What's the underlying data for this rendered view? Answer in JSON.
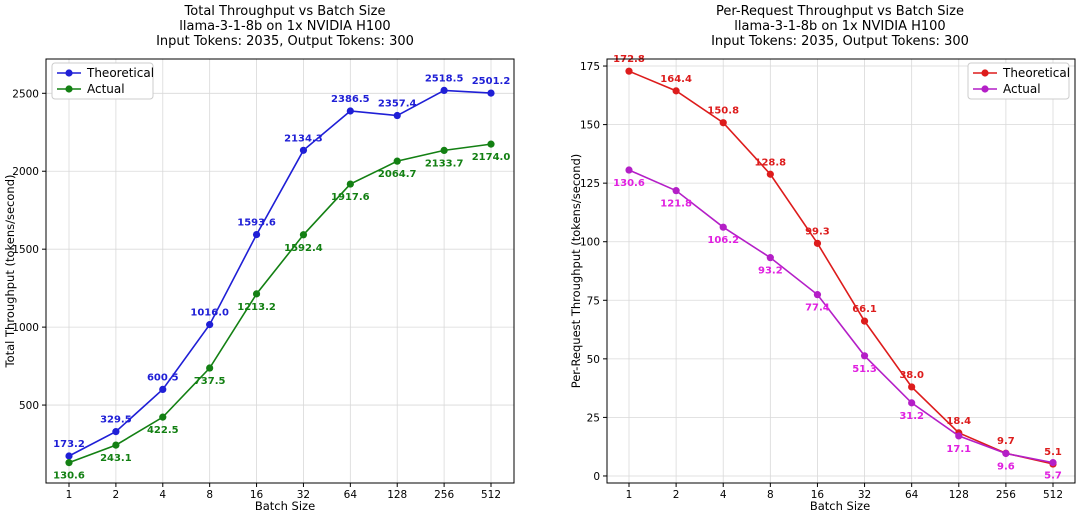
{
  "chart_data": [
    {
      "type": "line",
      "title": "Total Throughput vs Batch Size",
      "subtitle_1": "llama-3-1-8b on 1x NVIDIA H100",
      "subtitle_2": "Input Tokens: 2035, Output Tokens: 300",
      "xlabel": "Batch Size",
      "ylabel": "Total Throughput (tokens/second)",
      "x": [
        "1",
        "2",
        "4",
        "8",
        "16",
        "32",
        "64",
        "128",
        "256",
        "512"
      ],
      "xscale": "categorical",
      "ylim": [
        0,
        2720
      ],
      "yticks": [
        500,
        1000,
        1500,
        2000,
        2500
      ],
      "grid": true,
      "legend_position": "top-left",
      "series": [
        {
          "name": "Theoretical",
          "color": "#1f1fd6",
          "values": [
            173.2,
            329.5,
            600.5,
            1016.0,
            1593.6,
            2134.3,
            2386.5,
            2357.4,
            2518.5,
            2501.2
          ],
          "labels": [
            "173.2",
            "329.5",
            "600.5",
            "1016.0",
            "1593.6",
            "2134.3",
            "2386.5",
            "2357.4",
            "2518.5",
            "2501.2"
          ],
          "label_placement": "above"
        },
        {
          "name": "Actual",
          "color": "#138013",
          "values": [
            130.6,
            243.1,
            422.5,
            737.5,
            1213.2,
            1592.4,
            1917.6,
            2064.7,
            2133.7,
            2174.0
          ],
          "labels": [
            "130.6",
            "243.1",
            "422.5",
            "737.5",
            "1213.2",
            "1592.4",
            "1917.6",
            "2064.7",
            "2133.7",
            "2174.0"
          ],
          "label_placement": "below"
        }
      ]
    },
    {
      "type": "line",
      "title": "Per-Request Throughput vs Batch Size",
      "subtitle_1": "llama-3-1-8b on 1x NVIDIA H100",
      "subtitle_2": "Input Tokens: 2035, Output Tokens: 300",
      "xlabel": "Batch Size",
      "ylabel": "Per-Request Throughput (tokens/second)",
      "x": [
        "1",
        "2",
        "4",
        "8",
        "16",
        "32",
        "64",
        "128",
        "256",
        "512"
      ],
      "xscale": "categorical",
      "ylim": [
        -3,
        178
      ],
      "yticks": [
        0,
        25,
        50,
        75,
        100,
        125,
        150,
        175
      ],
      "grid": true,
      "legend_position": "top-right",
      "series": [
        {
          "name": "Theoretical",
          "color": "#dd1c1c",
          "values": [
            172.8,
            164.4,
            150.8,
            128.8,
            99.3,
            66.1,
            38.0,
            18.4,
            9.7,
            5.1
          ],
          "labels": [
            "172.8",
            "164.4",
            "150.8",
            "128.8",
            "99.3",
            "66.1",
            "38.0",
            "18.4",
            "9.7",
            "5.1"
          ],
          "label_placement": "above"
        },
        {
          "name": "Actual",
          "color": "#b41fc7",
          "label_color": "#e020e0",
          "values": [
            130.6,
            121.8,
            106.2,
            93.2,
            77.4,
            51.3,
            31.2,
            17.1,
            9.6,
            5.7
          ],
          "labels": [
            "130.6",
            "121.8",
            "106.2",
            "93.2",
            "77.4",
            "51.3",
            "31.2",
            "17.1",
            "9.6",
            "5.7"
          ],
          "label_placement": "below"
        }
      ]
    }
  ]
}
